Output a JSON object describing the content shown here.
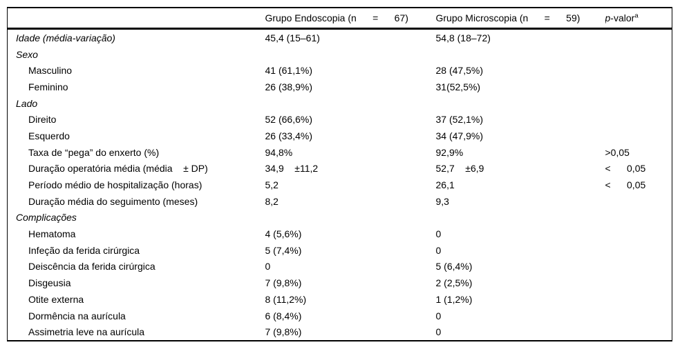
{
  "page": {
    "background_color": "#ffffff",
    "text_color": "#000000",
    "rule_color": "#000000"
  },
  "table": {
    "columns": [
      {
        "id": "parameter",
        "label": ""
      },
      {
        "id": "endoscopy_group",
        "label": "Grupo Endoscopia (n      =      67)"
      },
      {
        "id": "microscopy_group",
        "label": "Grupo Microscopia (n      =      59)"
      },
      {
        "id": "p_value"
      }
    ],
    "p_value_header": {
      "italic_p": "p",
      "rest": "-valor",
      "superscript": "a"
    },
    "rows": [
      {
        "label": "Idade (média-variação)",
        "style": "section",
        "endoscopy": "45,4 (15–61)",
        "microscopy": "54,8 (18–72)",
        "p": ""
      },
      {
        "label": "Sexo",
        "style": "section",
        "endoscopy": "",
        "microscopy": "",
        "p": ""
      },
      {
        "label": "Masculino",
        "style": "item",
        "endoscopy": "41 (61,1%)",
        "microscopy": "28 (47,5%)",
        "p": ""
      },
      {
        "label": "Feminino",
        "style": "item",
        "endoscopy": "26 (38,9%)",
        "microscopy": "31(52,5%)",
        "p": ""
      },
      {
        "label": "Lado",
        "style": "section",
        "endoscopy": "",
        "microscopy": "",
        "p": ""
      },
      {
        "label": "Direito",
        "style": "item",
        "endoscopy": "52 (66,6%)",
        "microscopy": "37 (52,1%)",
        "p": ""
      },
      {
        "label": "Esquerdo",
        "style": "item",
        "endoscopy": "26 (33,4%)",
        "microscopy": "34 (47,9%)",
        "p": ""
      },
      {
        "label": "Taxa de “pega” do enxerto (%)",
        "style": "item",
        "endoscopy": "94,8%",
        "microscopy": "92,9%",
        "p": ">0,05"
      },
      {
        "label": "Duração operatória média (média    ± DP)",
        "style": "item",
        "endoscopy": "34,9    ±11,2",
        "microscopy": "52,7    ±6,9",
        "p": "<      0,05"
      },
      {
        "label": "Período médio de hospitalização (horas)",
        "style": "item",
        "endoscopy": "5,2",
        "microscopy": "26,1",
        "p": "<      0,05"
      },
      {
        "label": "Duração média do seguimento (meses)",
        "style": "item",
        "endoscopy": "8,2",
        "microscopy": "9,3",
        "p": ""
      },
      {
        "label": "Complicações",
        "style": "section",
        "endoscopy": "",
        "microscopy": "",
        "p": ""
      },
      {
        "label": "Hematoma",
        "style": "item",
        "endoscopy": "4 (5,6%)",
        "microscopy": "0",
        "p": ""
      },
      {
        "label": "Infeção da ferida cirúrgica",
        "style": "item",
        "endoscopy": "5 (7,4%)",
        "microscopy": "0",
        "p": ""
      },
      {
        "label": "Deiscência da ferida cirúrgica",
        "style": "item",
        "endoscopy": "0",
        "microscopy": "5 (6,4%)",
        "p": ""
      },
      {
        "label": "Disgeusia",
        "style": "item",
        "endoscopy": "7 (9,8%)",
        "microscopy": "2 (2,5%)",
        "p": ""
      },
      {
        "label": "Otite externa",
        "style": "item",
        "endoscopy": "8 (11,2%)",
        "microscopy": "1 (1,2%)",
        "p": ""
      },
      {
        "label": "Dormência na aurícula",
        "style": "item",
        "endoscopy": "6 (8,4%)",
        "microscopy": "0",
        "p": ""
      },
      {
        "label": "Assimetria leve na aurícula",
        "style": "item",
        "endoscopy": "7 (9,8%)",
        "microscopy": "0",
        "p": ""
      }
    ]
  }
}
